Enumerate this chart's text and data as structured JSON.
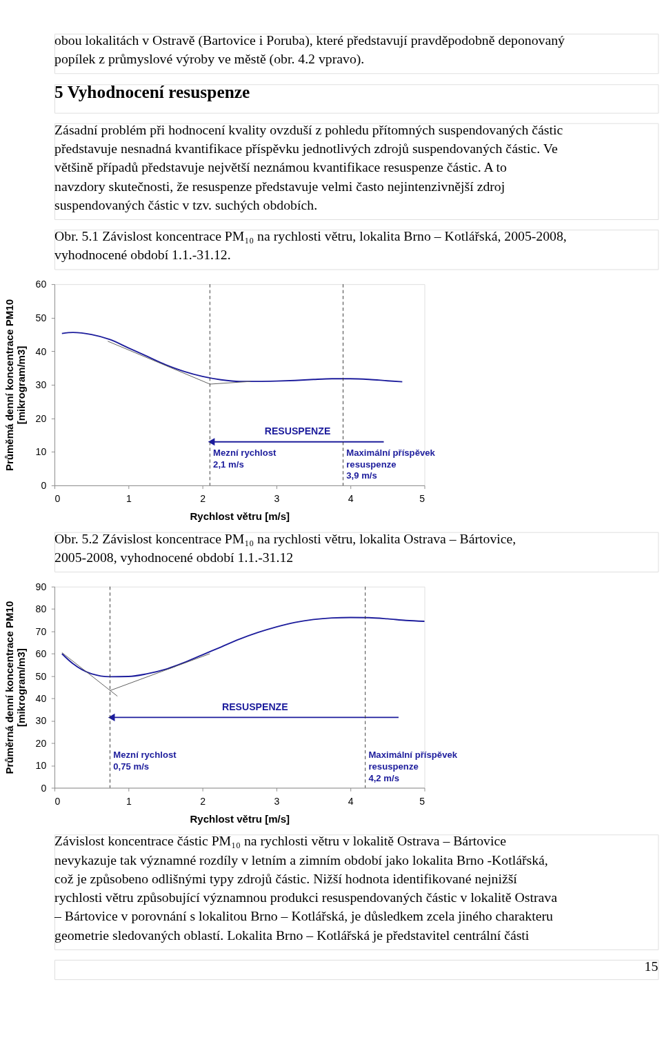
{
  "chart_data": [
    {
      "type": "line",
      "title": "5 Vyhodnocení resuspenze",
      "subtitle": "Obr. 5.1 Závislost koncentrace PM₁₀ na rychlosti větru, lokalita Brno – Kotlářská, 2005-2008, vyhodnocené období 1.1.-31.12.",
      "xlabel": "Rychlost větru [m/s]",
      "ylabel": "Průměmá denní koncentrace PM10\n[mikrogram/m3]",
      "xlim": [
        0,
        5
      ],
      "ylim": [
        0,
        60
      ],
      "xticks": [
        0,
        1,
        2,
        3,
        4,
        5
      ],
      "yticks": [
        0,
        10,
        20,
        30,
        40,
        50,
        60
      ],
      "grid": false,
      "marker": "none",
      "series": [
        {
          "color": "#1c1c9c",
          "x": [
            0.1,
            0.25,
            0.5,
            0.75,
            1.0,
            1.25,
            1.5,
            1.75,
            2.0,
            2.25,
            2.5,
            2.75,
            3.0,
            3.25,
            3.5,
            3.75,
            4.0,
            4.25,
            4.5,
            4.7
          ],
          "values": [
            45.3,
            45.6,
            45,
            43.5,
            41,
            38.5,
            36,
            34,
            32.5,
            31.5,
            31,
            31,
            31.1,
            31.3,
            31.6,
            31.8,
            31.8,
            31.6,
            31.2,
            30.9
          ]
        },
        {
          "color": "#555555",
          "x": [
            0.72,
            2.1
          ],
          "values": [
            43,
            30.2
          ]
        },
        {
          "color": "#555555",
          "x": [
            2.1,
            2.65
          ],
          "values": [
            30.2,
            31
          ]
        },
        {
          "name": "RESUSPENZE",
          "color": "#1c1c9c",
          "x": [
            4.45,
            2.12
          ],
          "values": [
            13,
            13
          ],
          "marker": "triangle"
        }
      ],
      "ref_lines": [
        {
          "axis": "x",
          "value": 2.1,
          "line_style": "dashed",
          "color": "#333333",
          "label": "Mezní rychlost\n2,1 m/s"
        },
        {
          "axis": "x",
          "value": 3.9,
          "line_style": "dashed",
          "color": "#333333",
          "label": "Maximální příspěvek\nresuspenze\n3,9 m/s"
        }
      ],
      "annotations": [
        "obou lokalitách v Ostravě (Bartovice i Poruba), které představují pravděpodobně deponovaný popílek z průmyslové výroby ve městě (obr. 4.2 vpravo).",
        "Zásadní problém při hodnocení kvality ovzduší z pohledu přítomných suspendovaných částic představuje nesnadná kvantifikace příspěvku jednotlivých zdrojů suspendovaných částic. Ve většině případů představuje největší neznámou kvantifikace resuspenze částic. A to navzdory skutečnosti, že resuspenze představuje velmi často nejintenzivnější zdroj suspendovaných částic v tzv. suchých obdobích."
      ]
    },
    {
      "type": "line",
      "title": "Obr. 5.2 Závislost koncentrace PM₁₀ na rychlosti větru, lokalita Ostrava – Bártovice, 2005-2008, vyhodnocené období 1.1.-31.12",
      "xlabel": "Rychlost větru [m/s]",
      "ylabel": "Průměrná denní koncentrace PM10\n[mikrogram/m3]",
      "xlim": [
        0,
        5
      ],
      "ylim": [
        0,
        90
      ],
      "xticks": [
        0,
        1,
        2,
        3,
        4,
        5
      ],
      "yticks": [
        0,
        10,
        20,
        30,
        40,
        50,
        60,
        70,
        80,
        90
      ],
      "grid": false,
      "marker": "none",
      "series": [
        {
          "color": "#1c1c9c",
          "x": [
            0.1,
            0.25,
            0.5,
            0.75,
            1.0,
            1.25,
            1.5,
            1.75,
            2.0,
            2.25,
            2.5,
            2.75,
            3.0,
            3.25,
            3.5,
            3.75,
            4.0,
            4.25,
            4.5,
            4.75,
            5.0
          ],
          "values": [
            60,
            55.5,
            51,
            49.7,
            49.8,
            51,
            53,
            56,
            59.5,
            63,
            66.5,
            69.5,
            72,
            74,
            75.3,
            76,
            76.2,
            76.1,
            75.6,
            74.9,
            74.5
          ]
        },
        {
          "color": "#555555",
          "x": [
            0.1,
            0.85
          ],
          "values": [
            60.5,
            41
          ]
        },
        {
          "color": "#555555",
          "x": [
            0.75,
            2.1
          ],
          "values": [
            43.5,
            60
          ]
        },
        {
          "name": "RESUSPENZE",
          "color": "#1c1c9c",
          "x": [
            4.65,
            0.77
          ],
          "values": [
            31.5,
            31.5
          ],
          "marker": "triangle"
        }
      ],
      "ref_lines": [
        {
          "axis": "x",
          "value": 0.75,
          "line_style": "dashed",
          "color": "#333333",
          "label": "Mezní rychlost\n0,75 m/s"
        },
        {
          "axis": "x",
          "value": 4.2,
          "line_style": "dashed",
          "color": "#333333",
          "label": "Maximální příspěvek\nresuspenze\n4,2 m/s"
        }
      ],
      "annotations": [
        "Závislost koncentrace částic PM₁₀ na rychlosti větru v lokalitě Ostrava – Bártovice nevykazuje tak významné rozdíly v letním a zimním období jako lokalita Brno -Kotlářská, což je způsobeno odlišnými typy zdrojů částic. Nižší hodnota identifikované nejnižší rychlosti větru způsobující významnou produkci resuspendovaných částic v lokalitě Ostrava – Bártovice v porovnání s lokalitou Brno – Kotlářská, je důsledkem zcela jiného charakteru geometrie sledovaných oblastí. Lokalita Brno – Kotlářská je představitel centrální části",
        "15"
      ]
    }
  ]
}
